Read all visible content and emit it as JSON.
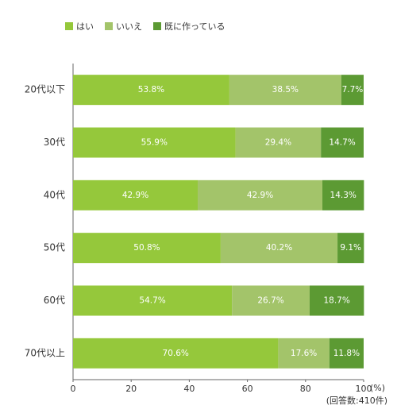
{
  "chart_data": {
    "type": "stacked_barh",
    "categories": [
      "20代以下",
      "30代",
      "40代",
      "50代",
      "60代",
      "70代以上"
    ],
    "series": [
      {
        "name": "はい",
        "color": "#95c83b",
        "values": [
          53.8,
          55.9,
          42.9,
          50.8,
          54.7,
          70.6
        ],
        "value_labels": [
          "53.8%",
          "55.9%",
          "42.9%",
          "50.8%",
          "54.7%",
          "70.6%"
        ]
      },
      {
        "name": "いいえ",
        "color": "#a3c46a",
        "values": [
          38.5,
          29.4,
          42.9,
          40.2,
          26.7,
          17.6
        ],
        "value_labels": [
          "38.5%",
          "29.4%",
          "42.9%",
          "40.2%",
          "26.7%",
          "17.6%"
        ]
      },
      {
        "name": "既に作っている",
        "color": "#5c9a33",
        "values": [
          7.7,
          14.7,
          14.3,
          9.1,
          18.7,
          11.8
        ],
        "value_labels": [
          "7.7%",
          "14.7%",
          "14.3%",
          "9.1%",
          "18.7%",
          "11.8%"
        ]
      }
    ],
    "xlim": [
      0,
      100
    ],
    "xticks": [
      0,
      20,
      40,
      60,
      80,
      100
    ],
    "xlabel": "(%)",
    "note": "(回答数:410件)",
    "grid": false
  }
}
